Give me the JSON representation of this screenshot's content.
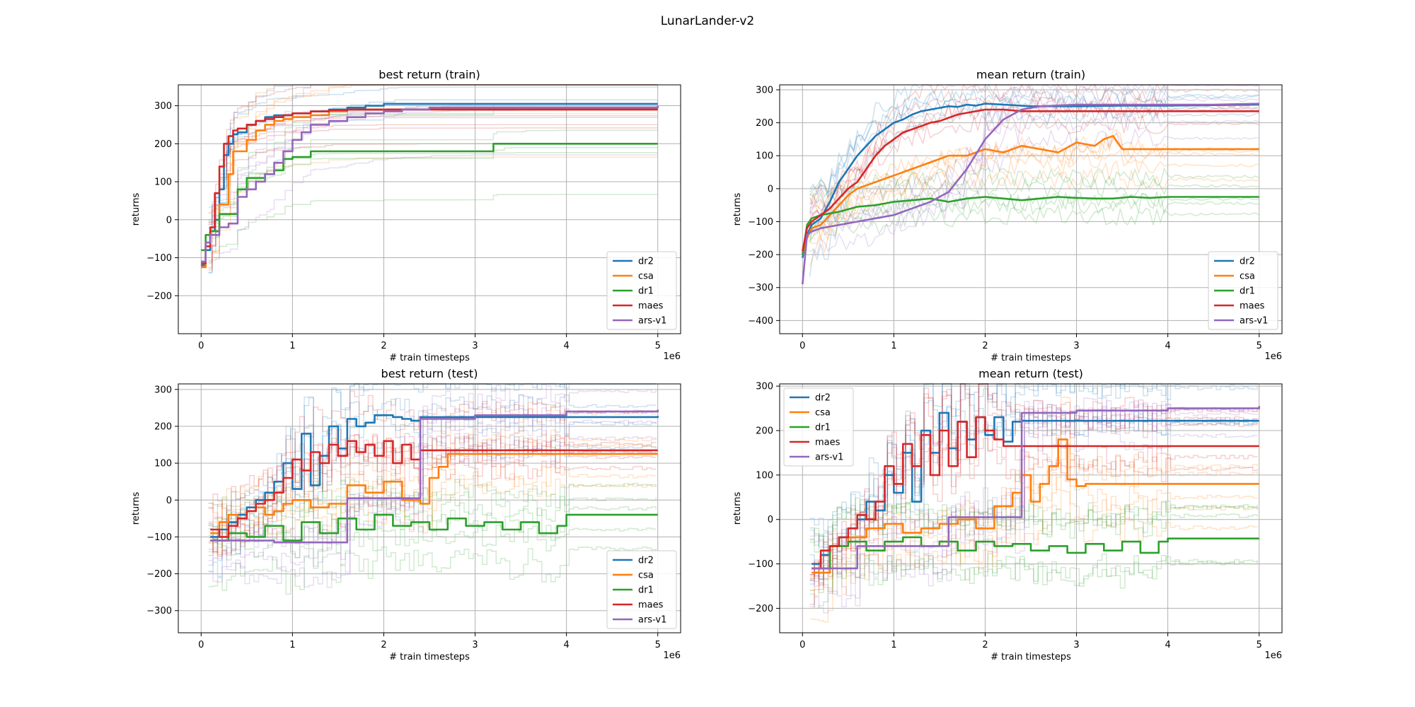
{
  "figure": {
    "suptitle": "LunarLander-v2"
  },
  "colors": {
    "dr2": "#1f77b4",
    "csa": "#ff7f0e",
    "dr1": "#2ca02c",
    "maes": "#d62728",
    "ars-v1": "#9467bd",
    "grid": "#b0b0b0"
  },
  "chart_data": [
    {
      "type": "line",
      "title": "best return (train)",
      "xlabel": "# train timesteps",
      "ylabel": "returns",
      "x_offset_label": "1e6",
      "xlim": [
        -0.25,
        5.25
      ],
      "ylim": [
        -300,
        355
      ],
      "xticks": [
        0,
        1,
        2,
        3,
        4,
        5
      ],
      "yticks": [
        -200,
        -100,
        0,
        100,
        200,
        300
      ],
      "grid": true,
      "legend_position": "lower right",
      "series": [
        {
          "name": "dr2",
          "kind": "step",
          "x": [
            0,
            0.05,
            0.1,
            0.15,
            0.2,
            0.25,
            0.3,
            0.35,
            0.4,
            0.5,
            0.6,
            0.7,
            0.8,
            1.0,
            1.2,
            1.4,
            1.6,
            1.8,
            2.0,
            5.0
          ],
          "y": [
            -120,
            -80,
            -30,
            0,
            80,
            170,
            200,
            225,
            230,
            250,
            260,
            270,
            275,
            280,
            285,
            290,
            295,
            300,
            305,
            305
          ]
        },
        {
          "name": "csa",
          "kind": "step",
          "x": [
            0,
            0.05,
            0.1,
            0.2,
            0.3,
            0.35,
            0.45,
            0.5,
            0.6,
            0.7,
            0.8,
            0.9,
            1.0,
            1.2,
            1.4,
            1.6,
            5.0
          ],
          "y": [
            -125,
            -60,
            -30,
            40,
            120,
            180,
            180,
            210,
            235,
            250,
            260,
            265,
            270,
            275,
            285,
            290,
            290
          ]
        },
        {
          "name": "dr1",
          "kind": "step",
          "x": [
            0,
            0.05,
            0.1,
            0.2,
            0.3,
            0.4,
            0.5,
            0.6,
            0.7,
            0.8,
            0.9,
            1.0,
            1.2,
            3.2,
            5.0
          ],
          "y": [
            -80,
            -40,
            -30,
            15,
            15,
            80,
            110,
            110,
            120,
            130,
            160,
            165,
            180,
            200,
            200
          ]
        },
        {
          "name": "maes",
          "kind": "step",
          "x": [
            0,
            0.05,
            0.1,
            0.15,
            0.2,
            0.25,
            0.3,
            0.35,
            0.4,
            0.5,
            0.6,
            0.7,
            0.8,
            0.9,
            1.0,
            1.2,
            1.4,
            1.6,
            5.0
          ],
          "y": [
            -115,
            -70,
            -20,
            70,
            140,
            200,
            220,
            235,
            240,
            250,
            260,
            265,
            270,
            275,
            280,
            285,
            288,
            290,
            290
          ]
        },
        {
          "name": "ars-v1",
          "kind": "step",
          "x": [
            0,
            0.05,
            0.1,
            0.2,
            0.3,
            0.4,
            0.5,
            0.6,
            0.7,
            0.8,
            0.9,
            1.0,
            1.1,
            1.2,
            1.4,
            1.6,
            1.8,
            2.0,
            2.2,
            2.5,
            5.0
          ],
          "y": [
            -110,
            -60,
            -40,
            -20,
            -10,
            60,
            80,
            100,
            120,
            150,
            180,
            210,
            230,
            250,
            260,
            270,
            280,
            285,
            290,
            295,
            300
          ]
        }
      ]
    },
    {
      "type": "line",
      "title": "mean return (train)",
      "xlabel": "# train timesteps",
      "ylabel": "returns",
      "x_offset_label": "1e6",
      "xlim": [
        -0.25,
        5.25
      ],
      "ylim": [
        -440,
        315
      ],
      "xticks": [
        0,
        1,
        2,
        3,
        4,
        5
      ],
      "yticks": [
        -400,
        -300,
        -200,
        -100,
        0,
        100,
        200,
        300
      ],
      "grid": true,
      "legend_position": "lower right",
      "series": [
        {
          "name": "dr2",
          "kind": "line",
          "x": [
            0,
            0.05,
            0.1,
            0.2,
            0.3,
            0.4,
            0.5,
            0.6,
            0.7,
            0.8,
            0.9,
            1.0,
            1.1,
            1.2,
            1.3,
            1.4,
            1.5,
            1.6,
            1.7,
            1.8,
            1.9,
            2.0,
            2.2,
            2.5,
            3.0,
            3.5,
            4.0,
            5.0
          ],
          "y": [
            -210,
            -140,
            -110,
            -90,
            -40,
            20,
            60,
            100,
            130,
            160,
            180,
            200,
            210,
            225,
            235,
            240,
            245,
            250,
            248,
            255,
            252,
            258,
            255,
            250,
            250,
            252,
            252,
            255
          ]
        },
        {
          "name": "csa",
          "kind": "line",
          "x": [
            0,
            0.05,
            0.1,
            0.2,
            0.3,
            0.4,
            0.5,
            0.6,
            0.7,
            0.8,
            0.9,
            1.0,
            1.2,
            1.4,
            1.6,
            1.8,
            2.0,
            2.2,
            2.4,
            2.6,
            2.8,
            3.0,
            3.2,
            3.3,
            3.4,
            3.5,
            5.0
          ],
          "y": [
            -200,
            -150,
            -120,
            -110,
            -80,
            -50,
            -20,
            0,
            10,
            20,
            30,
            40,
            60,
            80,
            100,
            100,
            120,
            110,
            130,
            120,
            110,
            140,
            130,
            150,
            160,
            120,
            120
          ]
        },
        {
          "name": "dr1",
          "kind": "line",
          "x": [
            0,
            0.05,
            0.1,
            0.2,
            0.4,
            0.6,
            0.8,
            1.0,
            1.2,
            1.4,
            1.6,
            1.8,
            2.0,
            2.2,
            2.4,
            2.6,
            2.8,
            3.0,
            3.2,
            3.4,
            3.6,
            3.8,
            4.0,
            5.0
          ],
          "y": [
            -200,
            -110,
            -90,
            -80,
            -70,
            -55,
            -50,
            -40,
            -35,
            -30,
            -40,
            -30,
            -25,
            -30,
            -35,
            -30,
            -25,
            -28,
            -30,
            -30,
            -25,
            -28,
            -25,
            -25
          ]
        },
        {
          "name": "maes",
          "kind": "line",
          "x": [
            0,
            0.05,
            0.1,
            0.2,
            0.3,
            0.4,
            0.5,
            0.6,
            0.7,
            0.8,
            0.9,
            1.0,
            1.1,
            1.2,
            1.3,
            1.4,
            1.5,
            1.6,
            1.7,
            1.8,
            1.9,
            2.0,
            2.2,
            2.4,
            3.0,
            5.0
          ],
          "y": [
            -190,
            -120,
            -100,
            -80,
            -60,
            -30,
            0,
            20,
            60,
            100,
            130,
            150,
            170,
            180,
            190,
            200,
            205,
            215,
            225,
            230,
            235,
            240,
            240,
            235,
            235,
            235
          ]
        },
        {
          "name": "ars-v1",
          "kind": "line",
          "x": [
            0,
            0.05,
            0.1,
            0.2,
            0.4,
            0.6,
            0.8,
            1.0,
            1.2,
            1.4,
            1.6,
            1.8,
            2.0,
            2.2,
            2.4,
            2.6,
            3.0,
            3.5,
            4.0,
            4.5,
            5.0
          ],
          "y": [
            -290,
            -140,
            -130,
            -120,
            -110,
            -100,
            -90,
            -80,
            -60,
            -40,
            -10,
            60,
            150,
            210,
            240,
            250,
            255,
            255,
            255,
            255,
            258
          ]
        }
      ]
    },
    {
      "type": "line",
      "title": "best return (test)",
      "xlabel": "# train timesteps",
      "ylabel": "returns",
      "x_offset_label": "1e6",
      "xlim": [
        -0.25,
        5.25
      ],
      "ylim": [
        -360,
        315
      ],
      "xticks": [
        0,
        1,
        2,
        3,
        4,
        5
      ],
      "yticks": [
        -300,
        -200,
        -100,
        0,
        100,
        200,
        300
      ],
      "grid": true,
      "legend_position": "lower right",
      "series": [
        {
          "name": "dr2",
          "kind": "step",
          "x": [
            0.1,
            0.2,
            0.3,
            0.4,
            0.5,
            0.6,
            0.7,
            0.8,
            0.9,
            1.0,
            1.1,
            1.2,
            1.3,
            1.4,
            1.5,
            1.6,
            1.7,
            1.8,
            1.9,
            2.0,
            2.1,
            2.2,
            2.3,
            2.4,
            5.0
          ],
          "y": [
            -100,
            -80,
            -60,
            -40,
            -20,
            0,
            20,
            50,
            100,
            30,
            180,
            40,
            120,
            200,
            140,
            220,
            200,
            210,
            230,
            230,
            225,
            220,
            215,
            225,
            228
          ]
        },
        {
          "name": "csa",
          "kind": "step",
          "x": [
            0.1,
            0.2,
            0.3,
            0.4,
            0.5,
            0.6,
            0.7,
            0.8,
            0.9,
            1.0,
            1.2,
            1.4,
            1.6,
            1.8,
            2.0,
            2.2,
            2.4,
            2.5,
            2.6,
            2.7,
            5.0
          ],
          "y": [
            -90,
            -60,
            -40,
            -50,
            -30,
            -20,
            -40,
            -30,
            -10,
            0,
            -20,
            -10,
            40,
            20,
            50,
            0,
            -10,
            60,
            90,
            125,
            125
          ]
        },
        {
          "name": "dr1",
          "kind": "step",
          "x": [
            0.1,
            0.3,
            0.5,
            0.7,
            0.9,
            1.1,
            1.3,
            1.5,
            1.7,
            1.9,
            2.1,
            2.3,
            2.5,
            2.7,
            2.9,
            3.1,
            3.3,
            3.5,
            3.7,
            3.9,
            4.0,
            5.0
          ],
          "y": [
            -110,
            -90,
            -100,
            -70,
            -110,
            -60,
            -90,
            -50,
            -80,
            -40,
            -70,
            -60,
            -80,
            -50,
            -70,
            -60,
            -80,
            -60,
            -90,
            -70,
            -40,
            -40
          ]
        },
        {
          "name": "maes",
          "kind": "step",
          "x": [
            0.1,
            0.2,
            0.3,
            0.4,
            0.5,
            0.6,
            0.7,
            0.8,
            0.9,
            1.0,
            1.1,
            1.2,
            1.3,
            1.4,
            1.5,
            1.6,
            1.7,
            1.8,
            1.9,
            2.0,
            2.1,
            2.2,
            2.3,
            2.4,
            5.0
          ],
          "y": [
            -80,
            -100,
            -70,
            -50,
            -30,
            -10,
            0,
            20,
            60,
            110,
            80,
            130,
            100,
            150,
            120,
            160,
            130,
            150,
            120,
            160,
            100,
            150,
            110,
            135,
            135
          ]
        },
        {
          "name": "ars-v1",
          "kind": "step",
          "x": [
            0.1,
            0.4,
            0.8,
            1.2,
            1.6,
            2.0,
            2.4,
            3.0,
            4.0,
            5.0
          ],
          "y": [
            -110,
            -110,
            -115,
            -115,
            5,
            5,
            220,
            230,
            240,
            245
          ]
        }
      ]
    },
    {
      "type": "line",
      "title": "mean return (test)",
      "xlabel": "# train timesteps",
      "ylabel": "returns",
      "x_offset_label": "1e6",
      "xlim": [
        -0.25,
        5.25
      ],
      "ylim": [
        -255,
        305
      ],
      "xticks": [
        0,
        1,
        2,
        3,
        4,
        5
      ],
      "yticks": [
        -200,
        -100,
        0,
        100,
        200,
        300
      ],
      "grid": true,
      "legend_position": "upper left",
      "series": [
        {
          "name": "dr2",
          "kind": "step",
          "x": [
            0.1,
            0.2,
            0.3,
            0.4,
            0.5,
            0.6,
            0.7,
            0.8,
            0.9,
            1.0,
            1.1,
            1.2,
            1.3,
            1.4,
            1.5,
            1.6,
            1.7,
            1.8,
            1.9,
            2.0,
            2.1,
            2.2,
            2.3,
            2.4,
            5.0
          ],
          "y": [
            -100,
            -80,
            -60,
            -40,
            -20,
            0,
            40,
            20,
            100,
            60,
            150,
            40,
            200,
            150,
            240,
            160,
            220,
            180,
            230,
            190,
            230,
            175,
            220,
            222,
            222
          ]
        },
        {
          "name": "csa",
          "kind": "step",
          "x": [
            0.1,
            0.3,
            0.5,
            0.7,
            0.9,
            1.1,
            1.3,
            1.5,
            1.7,
            1.9,
            2.1,
            2.3,
            2.4,
            2.5,
            2.6,
            2.7,
            2.8,
            2.9,
            3.0,
            3.1,
            3.2,
            3.5,
            5.0
          ],
          "y": [
            -120,
            -60,
            -40,
            -20,
            -10,
            -30,
            -20,
            -10,
            0,
            -20,
            30,
            60,
            100,
            40,
            80,
            120,
            180,
            90,
            75,
            80,
            80,
            80,
            80
          ]
        },
        {
          "name": "dr1",
          "kind": "step",
          "x": [
            0.1,
            0.3,
            0.5,
            0.7,
            0.9,
            1.1,
            1.3,
            1.5,
            1.7,
            1.9,
            2.1,
            2.3,
            2.5,
            2.7,
            2.9,
            3.1,
            3.3,
            3.5,
            3.7,
            3.9,
            4.0,
            5.0
          ],
          "y": [
            -110,
            -60,
            -50,
            -70,
            -50,
            -40,
            -60,
            -50,
            -70,
            -50,
            -60,
            -55,
            -70,
            -60,
            -75,
            -55,
            -70,
            -50,
            -75,
            -50,
            -43,
            -43
          ]
        },
        {
          "name": "maes",
          "kind": "step",
          "x": [
            0.1,
            0.2,
            0.3,
            0.4,
            0.5,
            0.6,
            0.7,
            0.8,
            0.9,
            1.0,
            1.1,
            1.2,
            1.3,
            1.4,
            1.5,
            1.6,
            1.7,
            1.8,
            1.9,
            2.0,
            2.1,
            2.2,
            5.0
          ],
          "y": [
            -110,
            -70,
            -60,
            -40,
            -20,
            10,
            0,
            40,
            120,
            80,
            170,
            120,
            190,
            100,
            200,
            120,
            220,
            140,
            230,
            200,
            180,
            165,
            165
          ]
        },
        {
          "name": "ars-v1",
          "kind": "step",
          "x": [
            0.1,
            0.6,
            1.2,
            1.6,
            2.0,
            2.4,
            3.0,
            4.0,
            5.0
          ],
          "y": [
            -110,
            -60,
            -60,
            5,
            5,
            240,
            245,
            250,
            255
          ]
        }
      ]
    }
  ]
}
